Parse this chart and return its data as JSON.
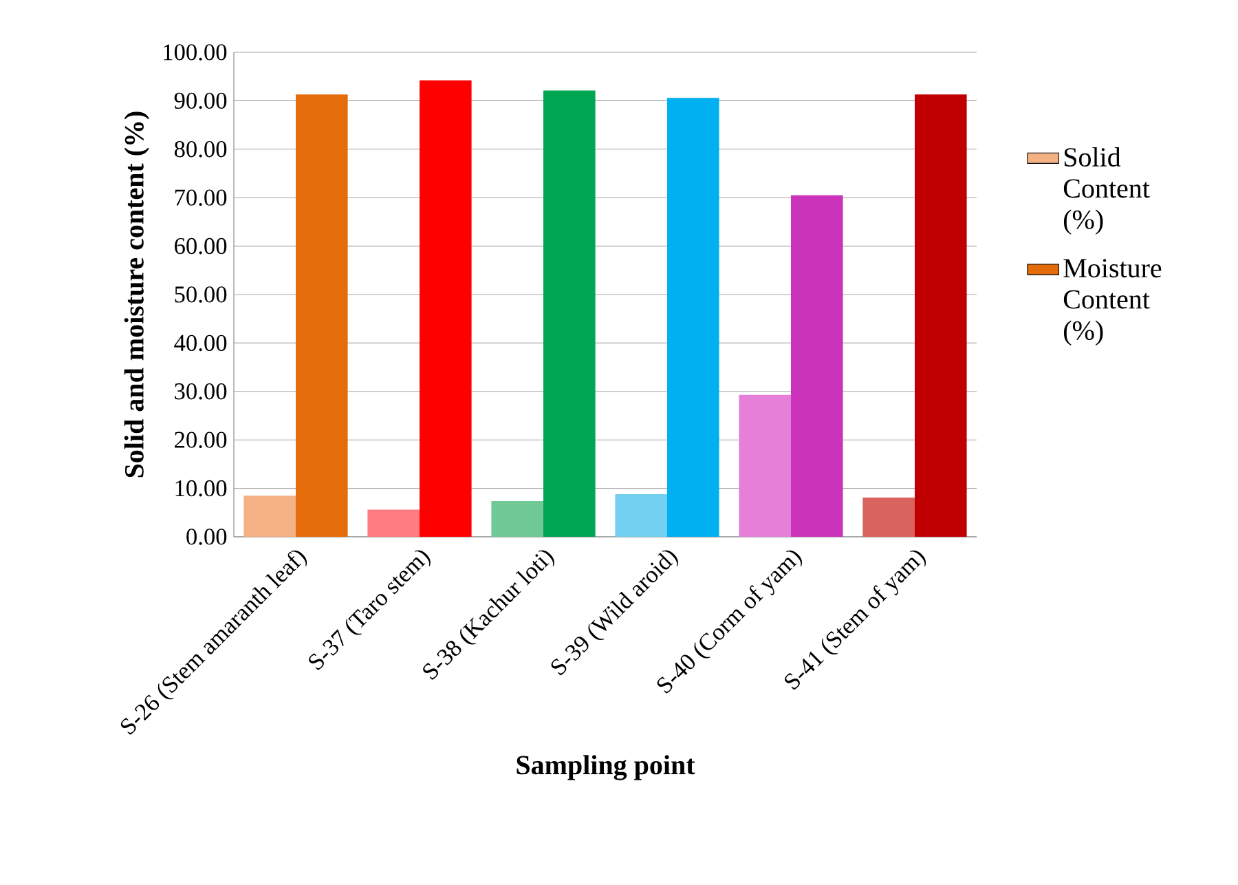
{
  "chart_data": {
    "type": "bar",
    "xlabel": "Sampling point",
    "ylabel": "Solid and moisture content (%)",
    "categories": [
      "S-26 (Stem amaranth leaf)",
      "S-37 (Taro stem)",
      "S-38 (Kachur loti)",
      "S-39 (Wild aroid)",
      "S-40 (Corm of yam)",
      "S-41 (Stem of yam)"
    ],
    "series": [
      {
        "name": "Solid Content (%)",
        "colors": [
          "#f4b183",
          "#ff7c80",
          "#70c995",
          "#74d0f1",
          "#e57fd8",
          "#d9635f"
        ],
        "values": [
          8.5,
          5.6,
          7.4,
          8.8,
          29.3,
          8.1
        ]
      },
      {
        "name": "Moisture Content (%)",
        "colors": [
          "#e46c0a",
          "#ff0000",
          "#00a651",
          "#00b0f0",
          "#cc33bb",
          "#c00000"
        ],
        "values": [
          91.3,
          94.2,
          92.1,
          90.6,
          70.5,
          91.3
        ]
      }
    ],
    "ylim": [
      0,
      100
    ],
    "yticks": [
      {
        "value": 0,
        "label": "0.00"
      },
      {
        "value": 10,
        "label": "10.00"
      },
      {
        "value": 20,
        "label": "20.00"
      },
      {
        "value": 30,
        "label": "30.00"
      },
      {
        "value": 40,
        "label": "40.00"
      },
      {
        "value": 50,
        "label": "50.00"
      },
      {
        "value": 60,
        "label": "60.00"
      },
      {
        "value": 70,
        "label": "70.00"
      },
      {
        "value": 80,
        "label": "80.00"
      },
      {
        "value": 90,
        "label": "90.00"
      },
      {
        "value": 100,
        "label": "100.00"
      }
    ],
    "grid": "y",
    "legend": "right"
  }
}
